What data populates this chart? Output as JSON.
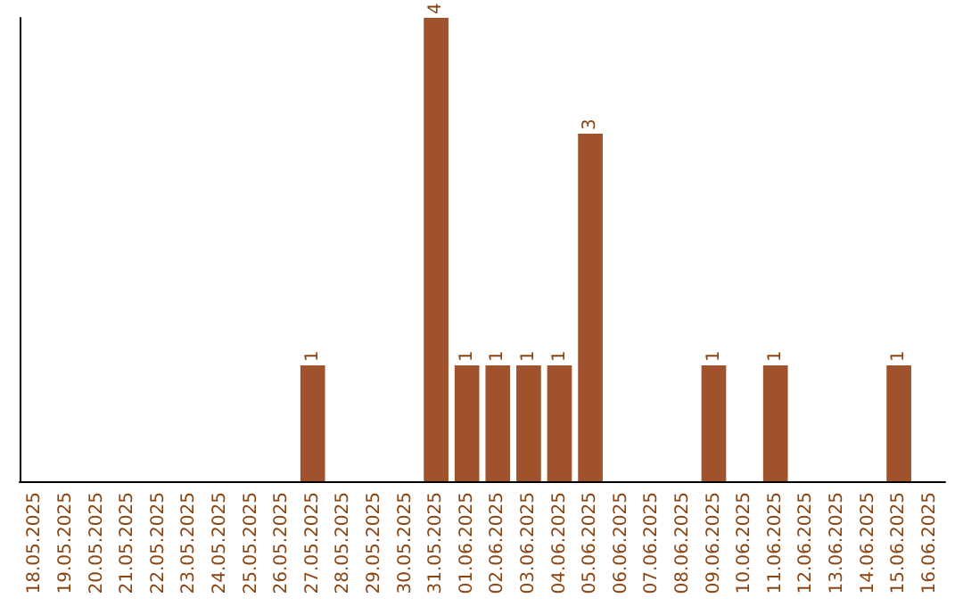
{
  "chart_data": {
    "type": "bar",
    "categories": [
      "18.05.2025",
      "19.05.2025",
      "20.05.2025",
      "21.05.2025",
      "22.05.2025",
      "23.05.2025",
      "24.05.2025",
      "25.05.2025",
      "26.05.2025",
      "27.05.2025",
      "28.05.2025",
      "29.05.2025",
      "30.05.2025",
      "31.05.2025",
      "01.06.2025",
      "02.06.2025",
      "03.06.2025",
      "04.06.2025",
      "05.06.2025",
      "06.06.2025",
      "07.06.2025",
      "08.06.2025",
      "09.06.2025",
      "10.06.2025",
      "11.06.2025",
      "12.06.2025",
      "13.06.2025",
      "14.06.2025",
      "15.06.2025",
      "16.06.2025"
    ],
    "values": [
      0,
      0,
      0,
      0,
      0,
      0,
      0,
      0,
      0,
      1,
      0,
      0,
      0,
      4,
      1,
      1,
      1,
      1,
      3,
      0,
      0,
      0,
      1,
      0,
      1,
      0,
      0,
      0,
      1,
      0
    ],
    "value_labels": [
      null,
      null,
      null,
      null,
      null,
      null,
      null,
      null,
      null,
      "1",
      null,
      null,
      null,
      "4",
      "1",
      "1",
      "1",
      "1",
      "3",
      null,
      null,
      null,
      "1",
      null,
      "1",
      null,
      null,
      null,
      "1",
      null
    ],
    "color": "#a0522d",
    "grid": false
  }
}
